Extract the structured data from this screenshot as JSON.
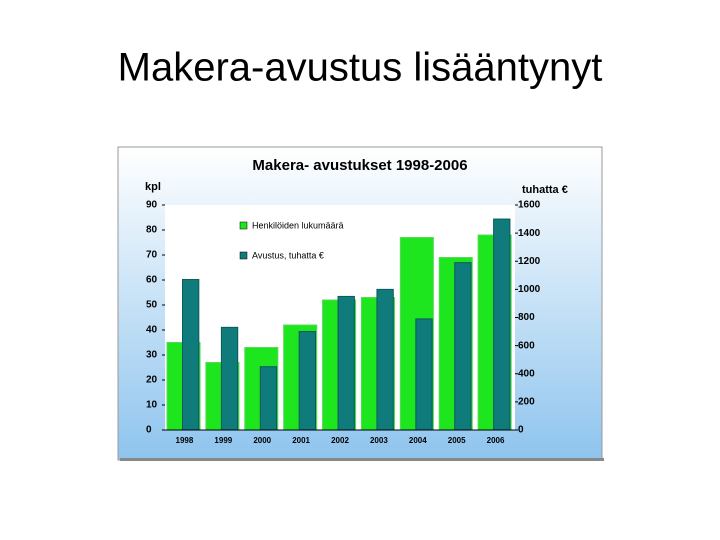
{
  "slide_title": "Makera-avustus lisääntynyt",
  "chart_data": {
    "type": "bar",
    "title": "Makera- avustukset 1998-2006",
    "y_label": "kpl",
    "y2_label": "tuhatta €",
    "categories": [
      "1998",
      "1999",
      "2000",
      "2001",
      "2002",
      "2003",
      "2004",
      "2005",
      "2006"
    ],
    "series": [
      {
        "name": "Henkilöiden lukumäärä",
        "color": "#1ee61e",
        "values": [
          35,
          27,
          33,
          42,
          52,
          53,
          77,
          69,
          78
        ]
      },
      {
        "name": "Avustus, tuhatta €",
        "color": "#0f7b7b",
        "axis": "y2",
        "values": [
          1070,
          730,
          450,
          700,
          950,
          1000,
          790,
          1190,
          1500
        ]
      }
    ],
    "ylim": [
      0,
      90
    ],
    "yticks": [
      0,
      10,
      20,
      30,
      40,
      50,
      60,
      70,
      80,
      90
    ],
    "y2lim": [
      0,
      1600
    ],
    "y2ticks": [
      0,
      200,
      400,
      600,
      800,
      1000,
      1200,
      1400,
      1600
    ],
    "legend": "top-left"
  }
}
